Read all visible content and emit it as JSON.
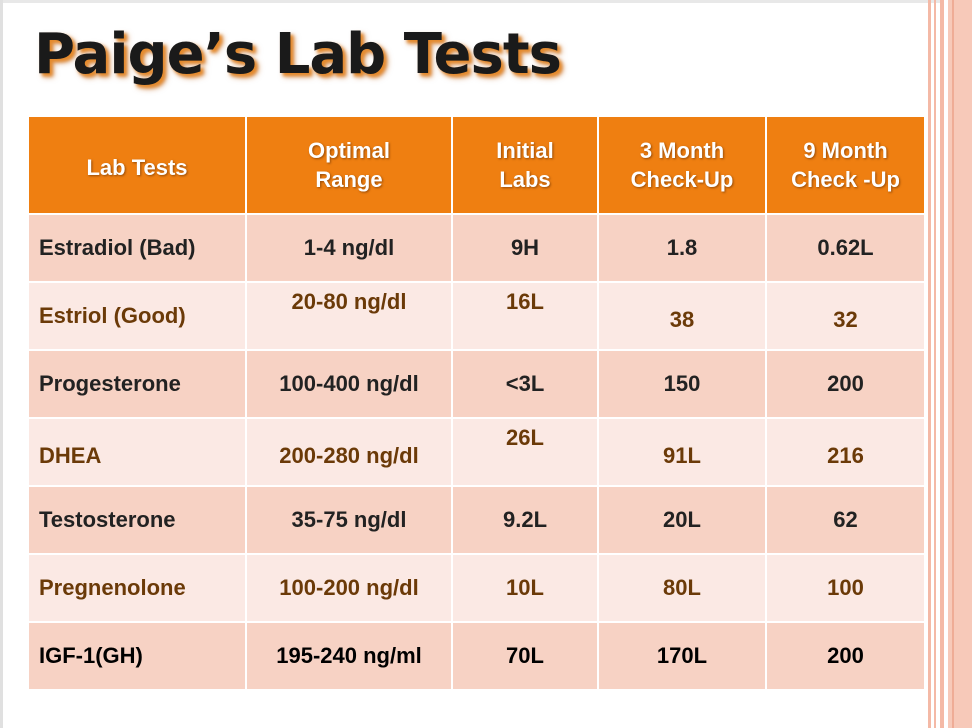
{
  "title": "Paige’s Lab Tests",
  "table": {
    "headers": [
      "Lab Tests",
      "Optimal\nRange",
      "Initial\nLabs",
      "3 Month\nCheck-Up",
      "9 Month\nCheck -Up"
    ],
    "rows": [
      [
        "Estradiol (Bad)",
        "1-4 ng/dl",
        "9H",
        "1.8",
        "0.62L"
      ],
      [
        "Estriol (Good)",
        "20-80 ng/dl",
        "16L",
        "38",
        "32"
      ],
      [
        "Progesterone",
        "100-400 ng/dl",
        "<3L",
        "150",
        "200"
      ],
      [
        "DHEA",
        "200-280 ng/dl",
        "26L",
        "91L",
        "216"
      ],
      [
        "Testosterone",
        "35-75 ng/dl",
        "9.2L",
        "20L",
        "62"
      ],
      [
        "Pregnenolone",
        "100-200 ng/dl",
        "10L",
        "80L",
        "100"
      ],
      [
        "IGF-1(GH)",
        "195-240 ng/ml",
        "70L",
        "170L",
        "200"
      ]
    ]
  },
  "colors": {
    "header_bg": "#ef7f11",
    "row_dark": "#f7d2c4",
    "row_light": "#fbe9e4",
    "brown_text": "#6b3a08",
    "stripe": "#f4b9a6"
  }
}
